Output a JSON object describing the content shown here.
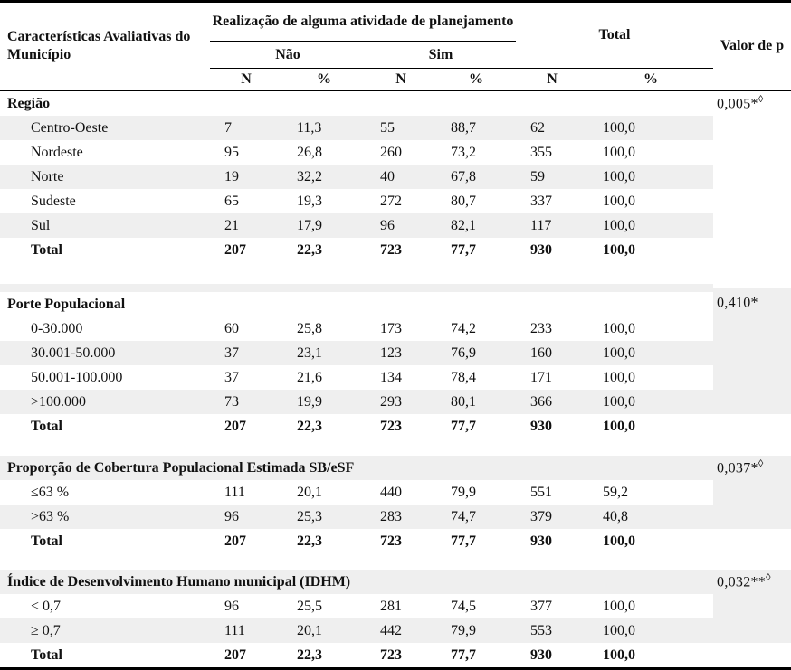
{
  "colors": {
    "stripe": "#efefef",
    "border": "#000000",
    "text": "#111111"
  },
  "header": {
    "row_label": "Características Avaliativas do Município",
    "planning_group": "Realização de alguma atividade de planejamento",
    "no_label": "Não",
    "yes_label": "Sim",
    "total_label": "Total",
    "p_label": "Valor de p",
    "n_label": "N",
    "pct_label": "%"
  },
  "sections": [
    {
      "title": "Região",
      "p_value": "0,005*",
      "p_sup": "◊",
      "title_shaded": false,
      "p_col_shaded": false,
      "spacer_before": 0,
      "spacer_strip": false,
      "rows": [
        {
          "label": "Centro-Oeste",
          "cells": [
            "7",
            "11,3",
            "55",
            "88,7",
            "62",
            "100,0"
          ],
          "shaded": true,
          "total": false
        },
        {
          "label": "Nordeste",
          "cells": [
            "95",
            "26,8",
            "260",
            "73,2",
            "355",
            "100,0"
          ],
          "shaded": false,
          "total": false
        },
        {
          "label": "Norte",
          "cells": [
            "19",
            "32,2",
            "40",
            "67,8",
            "59",
            "100,0"
          ],
          "shaded": true,
          "total": false
        },
        {
          "label": "Sudeste",
          "cells": [
            "65",
            "19,3",
            "272",
            "80,7",
            "337",
            "100,0"
          ],
          "shaded": false,
          "total": false
        },
        {
          "label": "Sul",
          "cells": [
            "21",
            "17,9",
            "96",
            "82,1",
            "117",
            "100,0"
          ],
          "shaded": true,
          "total": false
        },
        {
          "label": "Total",
          "cells": [
            "207",
            "22,3",
            "723",
            "77,7",
            "930",
            "100,0"
          ],
          "shaded": false,
          "total": true
        }
      ]
    },
    {
      "title": "Porte Populacional",
      "p_value": "0,410*",
      "p_sup": "",
      "title_shaded": false,
      "p_col_shaded": true,
      "spacer_before": 24,
      "spacer_strip": true,
      "rows": [
        {
          "label": "0-30.000",
          "cells": [
            "60",
            "25,8",
            "173",
            "74,2",
            "233",
            "100,0"
          ],
          "shaded": false,
          "total": false
        },
        {
          "label": "30.001-50.000",
          "cells": [
            "37",
            "23,1",
            "123",
            "76,9",
            "160",
            "100,0"
          ],
          "shaded": true,
          "total": false
        },
        {
          "label": "50.001-100.000",
          "cells": [
            "37",
            "21,6",
            "134",
            "78,4",
            "171",
            "100,0"
          ],
          "shaded": false,
          "total": false
        },
        {
          "label": ">100.000",
          "cells": [
            "73",
            "19,9",
            "293",
            "80,1",
            "366",
            "100,0"
          ],
          "shaded": true,
          "total": false
        },
        {
          "label": "Total",
          "cells": [
            "207",
            "22,3",
            "723",
            "77,7",
            "930",
            "100,0"
          ],
          "shaded": false,
          "total": true
        }
      ]
    },
    {
      "title": "Proporção de Cobertura Populacional Estimada SB/eSF",
      "p_value": "0,037*",
      "p_sup": "◊",
      "title_shaded": true,
      "p_col_shaded": true,
      "spacer_before": 19,
      "spacer_strip": false,
      "rows": [
        {
          "label": "≤63 %",
          "cells": [
            "111",
            "20,1",
            "440",
            "79,9",
            "551",
            "59,2"
          ],
          "shaded": false,
          "total": false
        },
        {
          "label": ">63 %",
          "cells": [
            "96",
            "25,3",
            "283",
            "74,7",
            "379",
            "40,8"
          ],
          "shaded": true,
          "total": false
        },
        {
          "label": "Total",
          "cells": [
            "207",
            "22,3",
            "723",
            "77,7",
            "930",
            "100,0"
          ],
          "shaded": false,
          "total": true
        }
      ]
    },
    {
      "title": "Índice de Desenvolvimento Humano municipal (IDHM)",
      "p_value": "0,032**",
      "p_sup": "◊",
      "title_shaded": true,
      "p_col_shaded": true,
      "spacer_before": 18,
      "spacer_strip": false,
      "rows": [
        {
          "label": "< 0,7",
          "cells": [
            "96",
            "25,5",
            "281",
            "74,5",
            "377",
            "100,0"
          ],
          "shaded": false,
          "total": false
        },
        {
          "label": "≥ 0,7",
          "cells": [
            "111",
            "20,1",
            "442",
            "79,9",
            "553",
            "100,0"
          ],
          "shaded": true,
          "total": false
        },
        {
          "label": "Total",
          "cells": [
            "207",
            "22,3",
            "723",
            "77,7",
            "930",
            "100,0"
          ],
          "shaded": false,
          "total": true
        }
      ]
    }
  ]
}
